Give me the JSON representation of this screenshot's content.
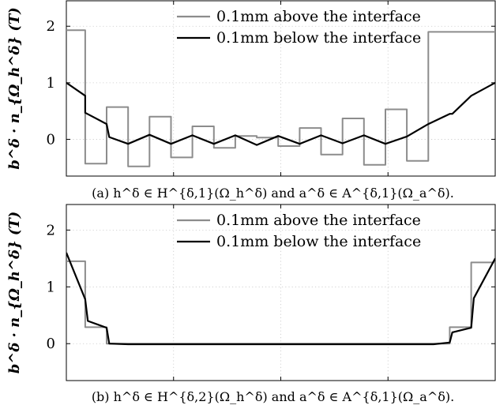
{
  "chart_data": [
    {
      "type": "line",
      "caption": "(a) h^δ ∈ H^{δ,1}(Ω_h^δ) and a^δ ∈ A^{δ,1}(Ω_a^δ).",
      "ylabel": "b^δ · n_{Ω_h^δ} (T)",
      "ylim": [
        -0.65,
        2.45
      ],
      "yticks": [
        "2",
        "1",
        "0"
      ],
      "ytick_values": [
        2,
        1,
        0
      ],
      "xlim": [
        0,
        1
      ],
      "grid": true,
      "legend_position": "top-center",
      "series": [
        {
          "name": "0.1mm above the interface",
          "color": "#8c8c8c",
          "x": [
            0,
            0.044,
            0.044,
            0.094,
            0.094,
            0.144,
            0.144,
            0.194,
            0.194,
            0.244,
            0.244,
            0.294,
            0.294,
            0.344,
            0.344,
            0.394,
            0.394,
            0.444,
            0.444,
            0.494,
            0.494,
            0.544,
            0.544,
            0.594,
            0.594,
            0.644,
            0.644,
            0.694,
            0.694,
            0.744,
            0.744,
            0.794,
            0.794,
            0.844,
            0.844,
            0.894,
            0.894,
            0.944,
            0.944,
            1.0
          ],
          "y": [
            1.93,
            1.93,
            -0.43,
            -0.43,
            0.57,
            0.57,
            -0.48,
            -0.48,
            0.4,
            0.4,
            -0.32,
            -0.32,
            0.23,
            0.23,
            -0.15,
            -0.15,
            0.06,
            0.06,
            0.03,
            0.03,
            -0.12,
            -0.12,
            0.2,
            0.2,
            -0.27,
            -0.27,
            0.37,
            0.37,
            -0.45,
            -0.45,
            0.53,
            0.53,
            -0.38,
            -0.38,
            1.9,
            1.9,
            1.9,
            1.9,
            1.9,
            1.9
          ]
        },
        {
          "name": "0.1mm below the interface",
          "color": "#000000",
          "x": [
            0,
            0.044,
            0.044,
            0.094,
            0.1,
            0.144,
            0.194,
            0.244,
            0.294,
            0.344,
            0.394,
            0.444,
            0.494,
            0.544,
            0.594,
            0.644,
            0.694,
            0.744,
            0.794,
            0.844,
            0.894,
            0.9,
            0.944,
            0.944,
            1.0
          ],
          "y": [
            1.0,
            0.77,
            0.47,
            0.27,
            0.04,
            -0.08,
            0.08,
            -0.08,
            0.07,
            -0.08,
            0.07,
            -0.1,
            0.06,
            -0.08,
            0.07,
            -0.07,
            0.07,
            -0.08,
            0.05,
            0.27,
            0.45,
            0.45,
            0.77,
            0.77,
            1.0
          ]
        }
      ]
    },
    {
      "type": "line",
      "caption": "(b) h^δ ∈ H^{δ,2}(Ω_h^δ) and a^δ ∈ A^{δ,1}(Ω_a^δ).",
      "ylabel": "b^δ · n_{Ω_h^δ} (T)",
      "ylim": [
        -0.65,
        2.45
      ],
      "yticks": [
        "2",
        "1",
        "0"
      ],
      "ytick_values": [
        2,
        1,
        0
      ],
      "xlim": [
        0,
        1
      ],
      "grid": true,
      "legend_position": "top-center",
      "series": [
        {
          "name": "0.1mm above the interface",
          "color": "#8c8c8c",
          "x": [
            0,
            0.044,
            0.044,
            0.094,
            0.094,
            0.6,
            0.894,
            0.894,
            0.944,
            0.944,
            1.0
          ],
          "y": [
            1.45,
            1.45,
            0.29,
            0.29,
            0.0,
            0.0,
            0.0,
            0.29,
            0.29,
            1.43,
            1.43
          ]
        },
        {
          "name": "0.1mm below the interface",
          "color": "#000000",
          "x": [
            0,
            0.044,
            0.05,
            0.094,
            0.1,
            0.144,
            0.856,
            0.894,
            0.9,
            0.944,
            0.95,
            1.0
          ],
          "y": [
            1.6,
            0.78,
            0.4,
            0.28,
            0.0,
            -0.01,
            -0.01,
            0.02,
            0.2,
            0.28,
            0.8,
            1.5
          ]
        }
      ]
    }
  ]
}
